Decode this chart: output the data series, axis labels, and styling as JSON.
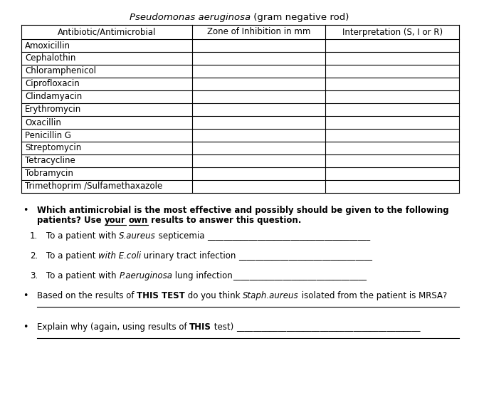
{
  "title_italic": "Pseudomonas aeruginosa",
  "title_normal": " (gram negative rod)",
  "table_headers": [
    "Antibiotic/Antimicrobial",
    "Zone of Inhibition in mm",
    "Interpretation (S, I or R)"
  ],
  "table_rows": [
    "Amoxicillin",
    "Cephalothin",
    "Chloramphenicol",
    "Ciprofloxacin",
    "Clindamyacin",
    "Erythromycin",
    "Oxacillin",
    "Penicillin G",
    "Streptomycin",
    "Tetracycline",
    "Tobramycin",
    "Trimethoprim /Sulfamethaxazole"
  ],
  "bg_color": "#ffffff",
  "text_color": "#000000",
  "line_color": "#000000",
  "fig_width": 6.73,
  "fig_height": 5.9,
  "dpi": 100
}
